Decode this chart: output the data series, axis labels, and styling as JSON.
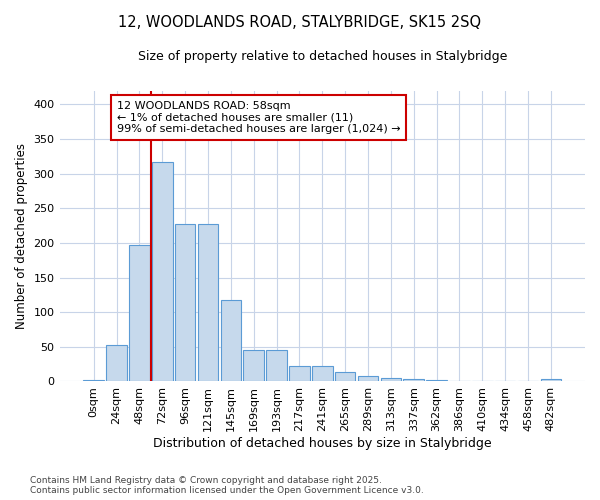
{
  "title1": "12, WOODLANDS ROAD, STALYBRIDGE, SK15 2SQ",
  "title2": "Size of property relative to detached houses in Stalybridge",
  "xlabel": "Distribution of detached houses by size in Stalybridge",
  "ylabel": "Number of detached properties",
  "categories": [
    "0sqm",
    "24sqm",
    "48sqm",
    "72sqm",
    "96sqm",
    "121sqm",
    "145sqm",
    "169sqm",
    "193sqm",
    "217sqm",
    "241sqm",
    "265sqm",
    "289sqm",
    "313sqm",
    "337sqm",
    "362sqm",
    "386sqm",
    "410sqm",
    "434sqm",
    "458sqm",
    "482sqm"
  ],
  "values": [
    2,
    52,
    197,
    317,
    228,
    228,
    117,
    46,
    45,
    22,
    22,
    14,
    8,
    5,
    4,
    2,
    1,
    1,
    1,
    0,
    3
  ],
  "bar_color": "#c6d9ec",
  "bar_edgecolor": "#5b9bd5",
  "vline_x": 2.5,
  "vline_color": "#cc0000",
  "annotation_text": "12 WOODLANDS ROAD: 58sqm\n← 1% of detached houses are smaller (11)\n99% of semi-detached houses are larger (1,024) →",
  "annotation_box_facecolor": "#ffffff",
  "annotation_box_edgecolor": "#cc0000",
  "background_color": "#ffffff",
  "plot_bg_color": "#ffffff",
  "grid_color": "#c8d4e8",
  "footer1": "Contains HM Land Registry data © Crown copyright and database right 2025.",
  "footer2": "Contains public sector information licensed under the Open Government Licence v3.0.",
  "ylim": [
    0,
    420
  ],
  "yticks": [
    0,
    50,
    100,
    150,
    200,
    250,
    300,
    350,
    400
  ]
}
